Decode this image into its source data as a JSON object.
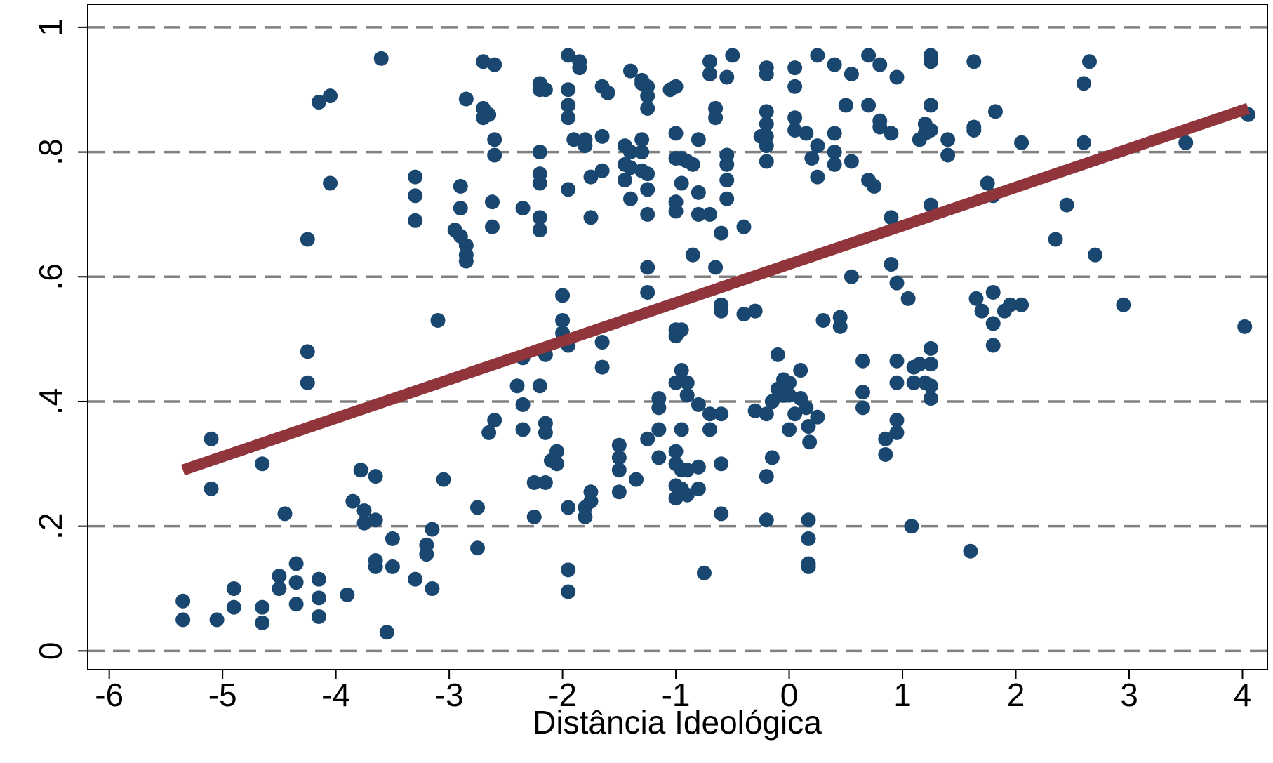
{
  "chart_data": {
    "type": "scatter",
    "x_label": "Distância Ideológica",
    "xlim": [
      -6.19,
      4.22
    ],
    "ylim": [
      -0.03,
      1.037
    ],
    "xticks": [
      -6,
      -5,
      -4,
      -3,
      -2,
      -1,
      0,
      1,
      2,
      3,
      4
    ],
    "yticks": [
      0,
      {
        "value": 0.2,
        "label": ".2"
      },
      {
        "value": 0.4,
        "label": ".4"
      },
      {
        "value": 0.6,
        "label": ".6"
      },
      {
        "value": 0.8,
        "label": ".8"
      },
      1
    ],
    "grid": true,
    "color": "#1a476f",
    "x": [
      -5.35,
      -5.35,
      -5.05,
      -5.1,
      -5.1,
      -4.9,
      -4.9,
      -4.65,
      -4.65,
      -4.65,
      -4.5,
      -4.5,
      -4.45,
      -4.35,
      -4.35,
      -4.35,
      -4.15,
      -4.15,
      -4.15,
      -3.9,
      -4.25,
      -4.25,
      -4.25,
      -4.15,
      -4.05,
      -4.05,
      -3.85,
      -3.78,
      -3.75,
      -3.75,
      -3.65,
      -3.65,
      -3.65,
      -3.65,
      -3.6,
      -3.55,
      -3.5,
      -3.5,
      -3.3,
      -3.3,
      -3.3,
      -3.3,
      -3.2,
      -3.2,
      -3.15,
      -3.15,
      -3.1,
      -3.05,
      -2.95,
      -2.9,
      -2.9,
      -2.9,
      -2.85,
      -2.85,
      -2.85,
      -2.85,
      -2.75,
      -2.75,
      -2.7,
      -2.7,
      -2.7,
      -2.65,
      -2.65,
      -2.6,
      -2.6,
      -2.6,
      -2.62,
      -2.62,
      -2.6,
      -2.4,
      -2.35,
      -2.35,
      -2.35,
      -2.35,
      -2.25,
      -2.25,
      -2.2,
      -2.2,
      -2.2,
      -2.2,
      -2.2,
      -2.2,
      -2.2,
      -2.2,
      -2.15,
      -2.15,
      -2.15,
      -2.15,
      -2.15,
      -2.1,
      -2.05,
      -2.05,
      -2.0,
      -2.0,
      -2.0,
      -1.95,
      -1.95,
      -1.95,
      -1.95,
      -1.95,
      -1.95,
      -1.95,
      -1.95,
      -1.95,
      -1.9,
      -1.85,
      -1.85,
      -1.8,
      -1.8,
      -1.8,
      -1.8,
      -1.75,
      -1.75,
      -1.75,
      -1.75,
      -1.65,
      -1.65,
      -1.65,
      -1.65,
      -1.65,
      -1.6,
      -1.5,
      -1.5,
      -1.5,
      -1.5,
      -1.45,
      -1.45,
      -1.45,
      -1.4,
      -1.4,
      -1.4,
      -1.4,
      -1.35,
      -1.3,
      -1.3,
      -1.3,
      -1.3,
      -1.3,
      -1.25,
      -1.25,
      -1.25,
      -1.25,
      -1.25,
      -1.25,
      -1.25,
      -1.25,
      -1.25,
      -1.15,
      -1.15,
      -1.15,
      -1.15,
      -1.05,
      -1.0,
      -1.0,
      -1.0,
      -1.0,
      -1.0,
      -1.0,
      -1.0,
      -1.0,
      -1.0,
      -1.0,
      -1.0,
      -1.0,
      -0.95,
      -0.95,
      -0.95,
      -0.95,
      -0.95,
      -0.95,
      -0.95,
      -0.9,
      -0.9,
      -0.9,
      -0.9,
      -0.9,
      -0.85,
      -0.85,
      -0.8,
      -0.8,
      -0.8,
      -0.8,
      -0.8,
      -0.8,
      -0.75,
      -0.7,
      -0.7,
      -0.7,
      -0.7,
      -0.7,
      -0.65,
      -0.65,
      -0.65,
      -0.6,
      -0.6,
      -0.6,
      -0.6,
      -0.6,
      -0.6,
      -0.55,
      -0.55,
      -0.55,
      -0.55,
      -0.55,
      -0.5,
      -0.4,
      -0.4,
      -0.3,
      -0.3,
      -0.25,
      -0.2,
      -0.2,
      -0.2,
      -0.2,
      -0.2,
      -0.2,
      -0.2,
      -0.2,
      -0.2,
      -0.2,
      -0.15,
      -0.15,
      -0.1,
      -0.1,
      -0.05,
      -0.05,
      0.0,
      0.0,
      0.0,
      0.05,
      0.05,
      0.05,
      0.05,
      0.05,
      0.1,
      0.1,
      0.15,
      0.15,
      0.17,
      0.18,
      0.17,
      0.17,
      0.17,
      0.17,
      0.2,
      0.25,
      0.25,
      0.25,
      0.25,
      0.3,
      0.4,
      0.4,
      0.4,
      0.4,
      0.45,
      0.45,
      0.5,
      0.55,
      0.55,
      0.55,
      0.65,
      0.65,
      0.65,
      0.7,
      0.7,
      0.7,
      0.75,
      0.8,
      0.8,
      0.8,
      0.85,
      0.85,
      0.9,
      0.9,
      0.9,
      0.95,
      0.95,
      0.95,
      0.95,
      0.95,
      0.95,
      1.05,
      1.08,
      1.1,
      1.1,
      1.15,
      1.15,
      1.2,
      1.2,
      1.2,
      1.25,
      1.25,
      1.25,
      1.25,
      1.25,
      1.25,
      1.25,
      1.25,
      1.25,
      1.4,
      1.4,
      1.6,
      1.63,
      1.63,
      1.63,
      1.65,
      1.7,
      1.75,
      1.8,
      1.8,
      1.8,
      1.8,
      1.82,
      1.9,
      1.95,
      2.05,
      2.05,
      2.35,
      2.45,
      2.6,
      2.6,
      2.65,
      2.7,
      2.95,
      3.5,
      4.05,
      4.02
    ],
    "values": [
      0.08,
      0.05,
      0.05,
      0.26,
      0.34,
      0.1,
      0.07,
      0.07,
      0.045,
      0.3,
      0.12,
      0.1,
      0.22,
      0.14,
      0.11,
      0.075,
      0.115,
      0.085,
      0.055,
      0.09,
      0.66,
      0.48,
      0.43,
      0.88,
      0.89,
      0.75,
      0.24,
      0.29,
      0.205,
      0.225,
      0.21,
      0.28,
      0.145,
      0.135,
      0.95,
      0.03,
      0.18,
      0.135,
      0.115,
      0.76,
      0.73,
      0.69,
      0.17,
      0.155,
      0.195,
      0.1,
      0.53,
      0.275,
      0.675,
      0.745,
      0.71,
      0.665,
      0.65,
      0.635,
      0.625,
      0.885,
      0.23,
      0.165,
      0.945,
      0.87,
      0.855,
      0.86,
      0.35,
      0.94,
      0.82,
      0.795,
      0.72,
      0.68,
      0.37,
      0.425,
      0.71,
      0.47,
      0.395,
      0.355,
      0.215,
      0.27,
      0.91,
      0.9,
      0.8,
      0.765,
      0.75,
      0.695,
      0.675,
      0.425,
      0.9,
      0.475,
      0.365,
      0.35,
      0.27,
      0.305,
      0.32,
      0.3,
      0.57,
      0.53,
      0.51,
      0.955,
      0.9,
      0.875,
      0.855,
      0.74,
      0.49,
      0.23,
      0.13,
      0.095,
      0.82,
      0.945,
      0.935,
      0.82,
      0.81,
      0.215,
      0.23,
      0.76,
      0.695,
      0.255,
      0.24,
      0.905,
      0.825,
      0.77,
      0.495,
      0.455,
      0.895,
      0.33,
      0.31,
      0.29,
      0.255,
      0.81,
      0.78,
      0.755,
      0.93,
      0.8,
      0.775,
      0.725,
      0.275,
      0.915,
      0.91,
      0.82,
      0.8,
      0.77,
      0.905,
      0.89,
      0.87,
      0.765,
      0.74,
      0.7,
      0.615,
      0.575,
      0.34,
      0.405,
      0.39,
      0.355,
      0.31,
      0.9,
      0.905,
      0.83,
      0.79,
      0.72,
      0.705,
      0.515,
      0.505,
      0.43,
      0.32,
      0.3,
      0.265,
      0.245,
      0.79,
      0.75,
      0.515,
      0.45,
      0.355,
      0.29,
      0.26,
      0.785,
      0.43,
      0.41,
      0.29,
      0.25,
      0.635,
      0.78,
      0.82,
      0.735,
      0.7,
      0.395,
      0.295,
      0.26,
      0.125,
      0.925,
      0.945,
      0.7,
      0.355,
      0.38,
      0.87,
      0.855,
      0.615,
      0.67,
      0.555,
      0.545,
      0.38,
      0.3,
      0.22,
      0.92,
      0.795,
      0.78,
      0.755,
      0.725,
      0.955,
      0.54,
      0.68,
      0.385,
      0.545,
      0.825,
      0.935,
      0.925,
      0.865,
      0.845,
      0.825,
      0.81,
      0.785,
      0.38,
      0.28,
      0.21,
      0.4,
      0.31,
      0.475,
      0.42,
      0.435,
      0.41,
      0.43,
      0.41,
      0.355,
      0.935,
      0.905,
      0.855,
      0.835,
      0.38,
      0.45,
      0.405,
      0.83,
      0.39,
      0.36,
      0.335,
      0.21,
      0.18,
      0.14,
      0.135,
      0.79,
      0.955,
      0.81,
      0.76,
      0.375,
      0.53,
      0.94,
      0.8,
      0.78,
      0.83,
      0.535,
      0.52,
      0.875,
      0.925,
      0.785,
      0.6,
      0.465,
      0.415,
      0.39,
      0.955,
      0.875,
      0.755,
      0.745,
      0.94,
      0.85,
      0.84,
      0.34,
      0.315,
      0.83,
      0.695,
      0.62,
      0.92,
      0.59,
      0.465,
      0.43,
      0.37,
      0.35,
      0.565,
      0.2,
      0.455,
      0.43,
      0.82,
      0.46,
      0.845,
      0.83,
      0.43,
      0.955,
      0.945,
      0.875,
      0.835,
      0.715,
      0.485,
      0.46,
      0.425,
      0.405,
      0.82,
      0.795,
      0.16,
      0.945,
      0.84,
      0.835,
      0.565,
      0.545,
      0.75,
      0.73,
      0.575,
      0.525,
      0.49,
      0.865,
      0.545,
      0.555,
      0.555,
      0.815,
      0.66,
      0.715,
      0.91,
      0.815,
      0.945,
      0.635,
      0.555,
      0.815,
      0.86,
      0.52
    ],
    "fit": {
      "color": "#90353b",
      "x": [
        -5.35,
        4.05
      ],
      "values": [
        0.29,
        0.87
      ]
    }
  }
}
